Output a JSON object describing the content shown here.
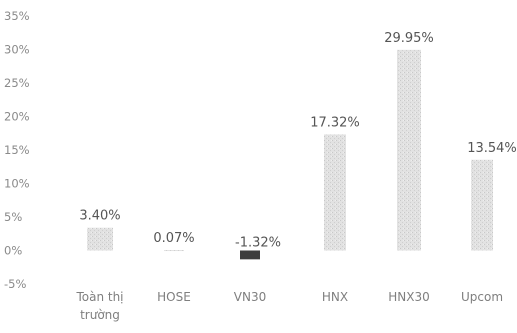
{
  "chart_data": {
    "type": "bar",
    "title": "",
    "xlabel": "",
    "ylabel": "",
    "ylim": [
      -5,
      35
    ],
    "yticks": [
      -5,
      0,
      5,
      10,
      15,
      20,
      25,
      30,
      35
    ],
    "ytick_labels": [
      "-5%",
      "0%",
      "5%",
      "10%",
      "15%",
      "20%",
      "25%",
      "30%",
      "35%"
    ],
    "categories": [
      [
        "Toàn thị",
        "trường"
      ],
      [
        "HOSE"
      ],
      [
        "VN30"
      ],
      [
        "HNX"
      ],
      [
        "HNX30"
      ],
      [
        "Upcom"
      ]
    ],
    "values": [
      3.4,
      0.07,
      -1.32,
      17.32,
      29.95,
      13.54
    ],
    "value_labels": [
      "3.40%",
      "0.07%",
      "-1.32%",
      "17.32%",
      "29.95%",
      "13.54%"
    ],
    "grid": false,
    "legend": "none",
    "colors": {
      "positive_bar": "#dadada",
      "negative_bar": "#3d3d3d",
      "tick_text": "#8a8a8a",
      "category_text": "#7f7f7f",
      "value_text": "#555555"
    }
  }
}
